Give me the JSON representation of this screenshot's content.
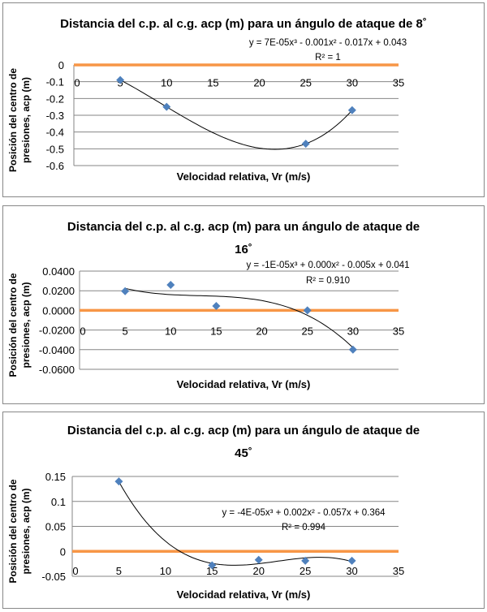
{
  "chart_data": [
    {
      "type": "scatter",
      "title": "Distancia del c.p. al c.g. acp (m) para un ángulo de ataque de 8˚",
      "title_lines": [
        "Distancia del c.p. al c.g. acp (m) para un ángulo de ataque de 8˚"
      ],
      "xlabel": "Velocidad relativa, Vr (m/s)",
      "ylabel_lines": [
        "Posición del centro de",
        "presiones, acp (m)"
      ],
      "xlim": [
        0,
        35
      ],
      "xticks": [
        "0",
        "5",
        "10",
        "15",
        "20",
        "25",
        "30",
        "35"
      ],
      "ylim": [
        -0.6,
        0
      ],
      "yticks": [
        "0",
        "-0.1",
        "-0.2",
        "-0.3",
        "-0.4",
        "-0.5",
        "-0.6"
      ],
      "x": [
        5,
        10,
        25,
        30
      ],
      "y": [
        -0.09,
        -0.25,
        -0.47,
        -0.27
      ],
      "trendline": {
        "type": "polynomial order 3",
        "equation": "y = 7E-05x³ - 0.001x² - 0.017x + 0.043",
        "r2": "R² = 1"
      },
      "reference_line": 0,
      "grid": true,
      "colors": {
        "marker": "#4f81bd",
        "reference": "#f79646",
        "trend": "#000000"
      }
    },
    {
      "type": "scatter",
      "title": "Distancia del c.p. al c.g. acp (m) para un ángulo de ataque de 16˚",
      "title_lines": [
        "Distancia del c.p. al c.g. acp (m) para un ángulo de ataque de",
        "16˚"
      ],
      "xlabel": "Velocidad relativa, Vr (m/s)",
      "ylabel_lines": [
        "Posición del centro de",
        "presiones, acp (m)"
      ],
      "xlim": [
        0,
        35
      ],
      "xticks": [
        "0",
        "5",
        "10",
        "15",
        "20",
        "25",
        "30",
        "35"
      ],
      "ylim": [
        -0.06,
        0.04
      ],
      "yticks": [
        "0.0400",
        "0.0200",
        "0.0000",
        "-0.0200",
        "-0.0400",
        "-0.0600"
      ],
      "x": [
        5,
        10,
        15,
        25,
        30
      ],
      "y": [
        0.0195,
        0.026,
        0.0045,
        0.0,
        -0.04
      ],
      "trendline": {
        "type": "polynomial order 3",
        "equation": "y = -1E-05x³ + 0.000x² - 0.005x + 0.041",
        "r2": "R² = 0.910"
      },
      "reference_line": 0,
      "grid": true,
      "colors": {
        "marker": "#4f81bd",
        "reference": "#f79646",
        "trend": "#000000"
      }
    },
    {
      "type": "scatter",
      "title": "Distancia del c.p. al c.g. acp (m) para un ángulo de ataque de 45˚",
      "title_lines": [
        "Distancia del c.p. al c.g. acp (m) para un ángulo de ataque de",
        "45˚"
      ],
      "xlabel": "Velocidad relativa, Vr (m/s)",
      "ylabel_lines": [
        "Posición del centro de",
        "presiones, acp (m)"
      ],
      "xlim": [
        0,
        35
      ],
      "xticks": [
        "0",
        "5",
        "10",
        "15",
        "20",
        "25",
        "30",
        "35"
      ],
      "ylim": [
        -0.05,
        0.15
      ],
      "yticks": [
        "0.15",
        "0.1",
        "0.05",
        "0",
        "-0.05"
      ],
      "x": [
        5,
        15,
        20,
        25,
        30
      ],
      "y": [
        0.14,
        -0.028,
        -0.017,
        -0.019,
        -0.019
      ],
      "trendline": {
        "type": "polynomial order 3",
        "equation": "y = -4E-05x³ + 0.002x² - 0.057x + 0.364",
        "r2": "R² = 0.994"
      },
      "reference_line": 0,
      "grid": true,
      "colors": {
        "marker": "#4f81bd",
        "reference": "#f79646",
        "trend": "#000000"
      }
    }
  ]
}
